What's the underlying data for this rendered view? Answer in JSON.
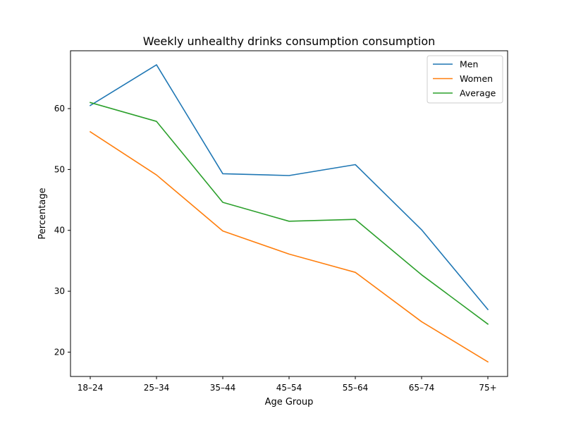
{
  "chart_data": {
    "type": "line",
    "title": "Weekly unhealthy drinks consumption consumption",
    "xlabel": "Age Group",
    "ylabel": "Percentage",
    "categories": [
      "18–24",
      "25–34",
      "35–44",
      "45–54",
      "55–64",
      "65–74",
      "75+"
    ],
    "ylim": [
      16.0,
      69.5
    ],
    "yticks": [
      20,
      30,
      40,
      50,
      60
    ],
    "grid": false,
    "legend_position": "top-right",
    "series": [
      {
        "name": "Men",
        "color": "#1f77b4",
        "values": [
          60.5,
          67.2,
          49.3,
          49.0,
          50.8,
          40.1,
          27.0
        ]
      },
      {
        "name": "Women",
        "color": "#ff7f0e",
        "values": [
          56.2,
          49.1,
          39.9,
          36.1,
          33.1,
          25.0,
          18.4
        ]
      },
      {
        "name": "Average",
        "color": "#2ca02c",
        "values": [
          61.0,
          57.9,
          44.6,
          41.5,
          41.8,
          32.7,
          24.6
        ]
      }
    ]
  }
}
